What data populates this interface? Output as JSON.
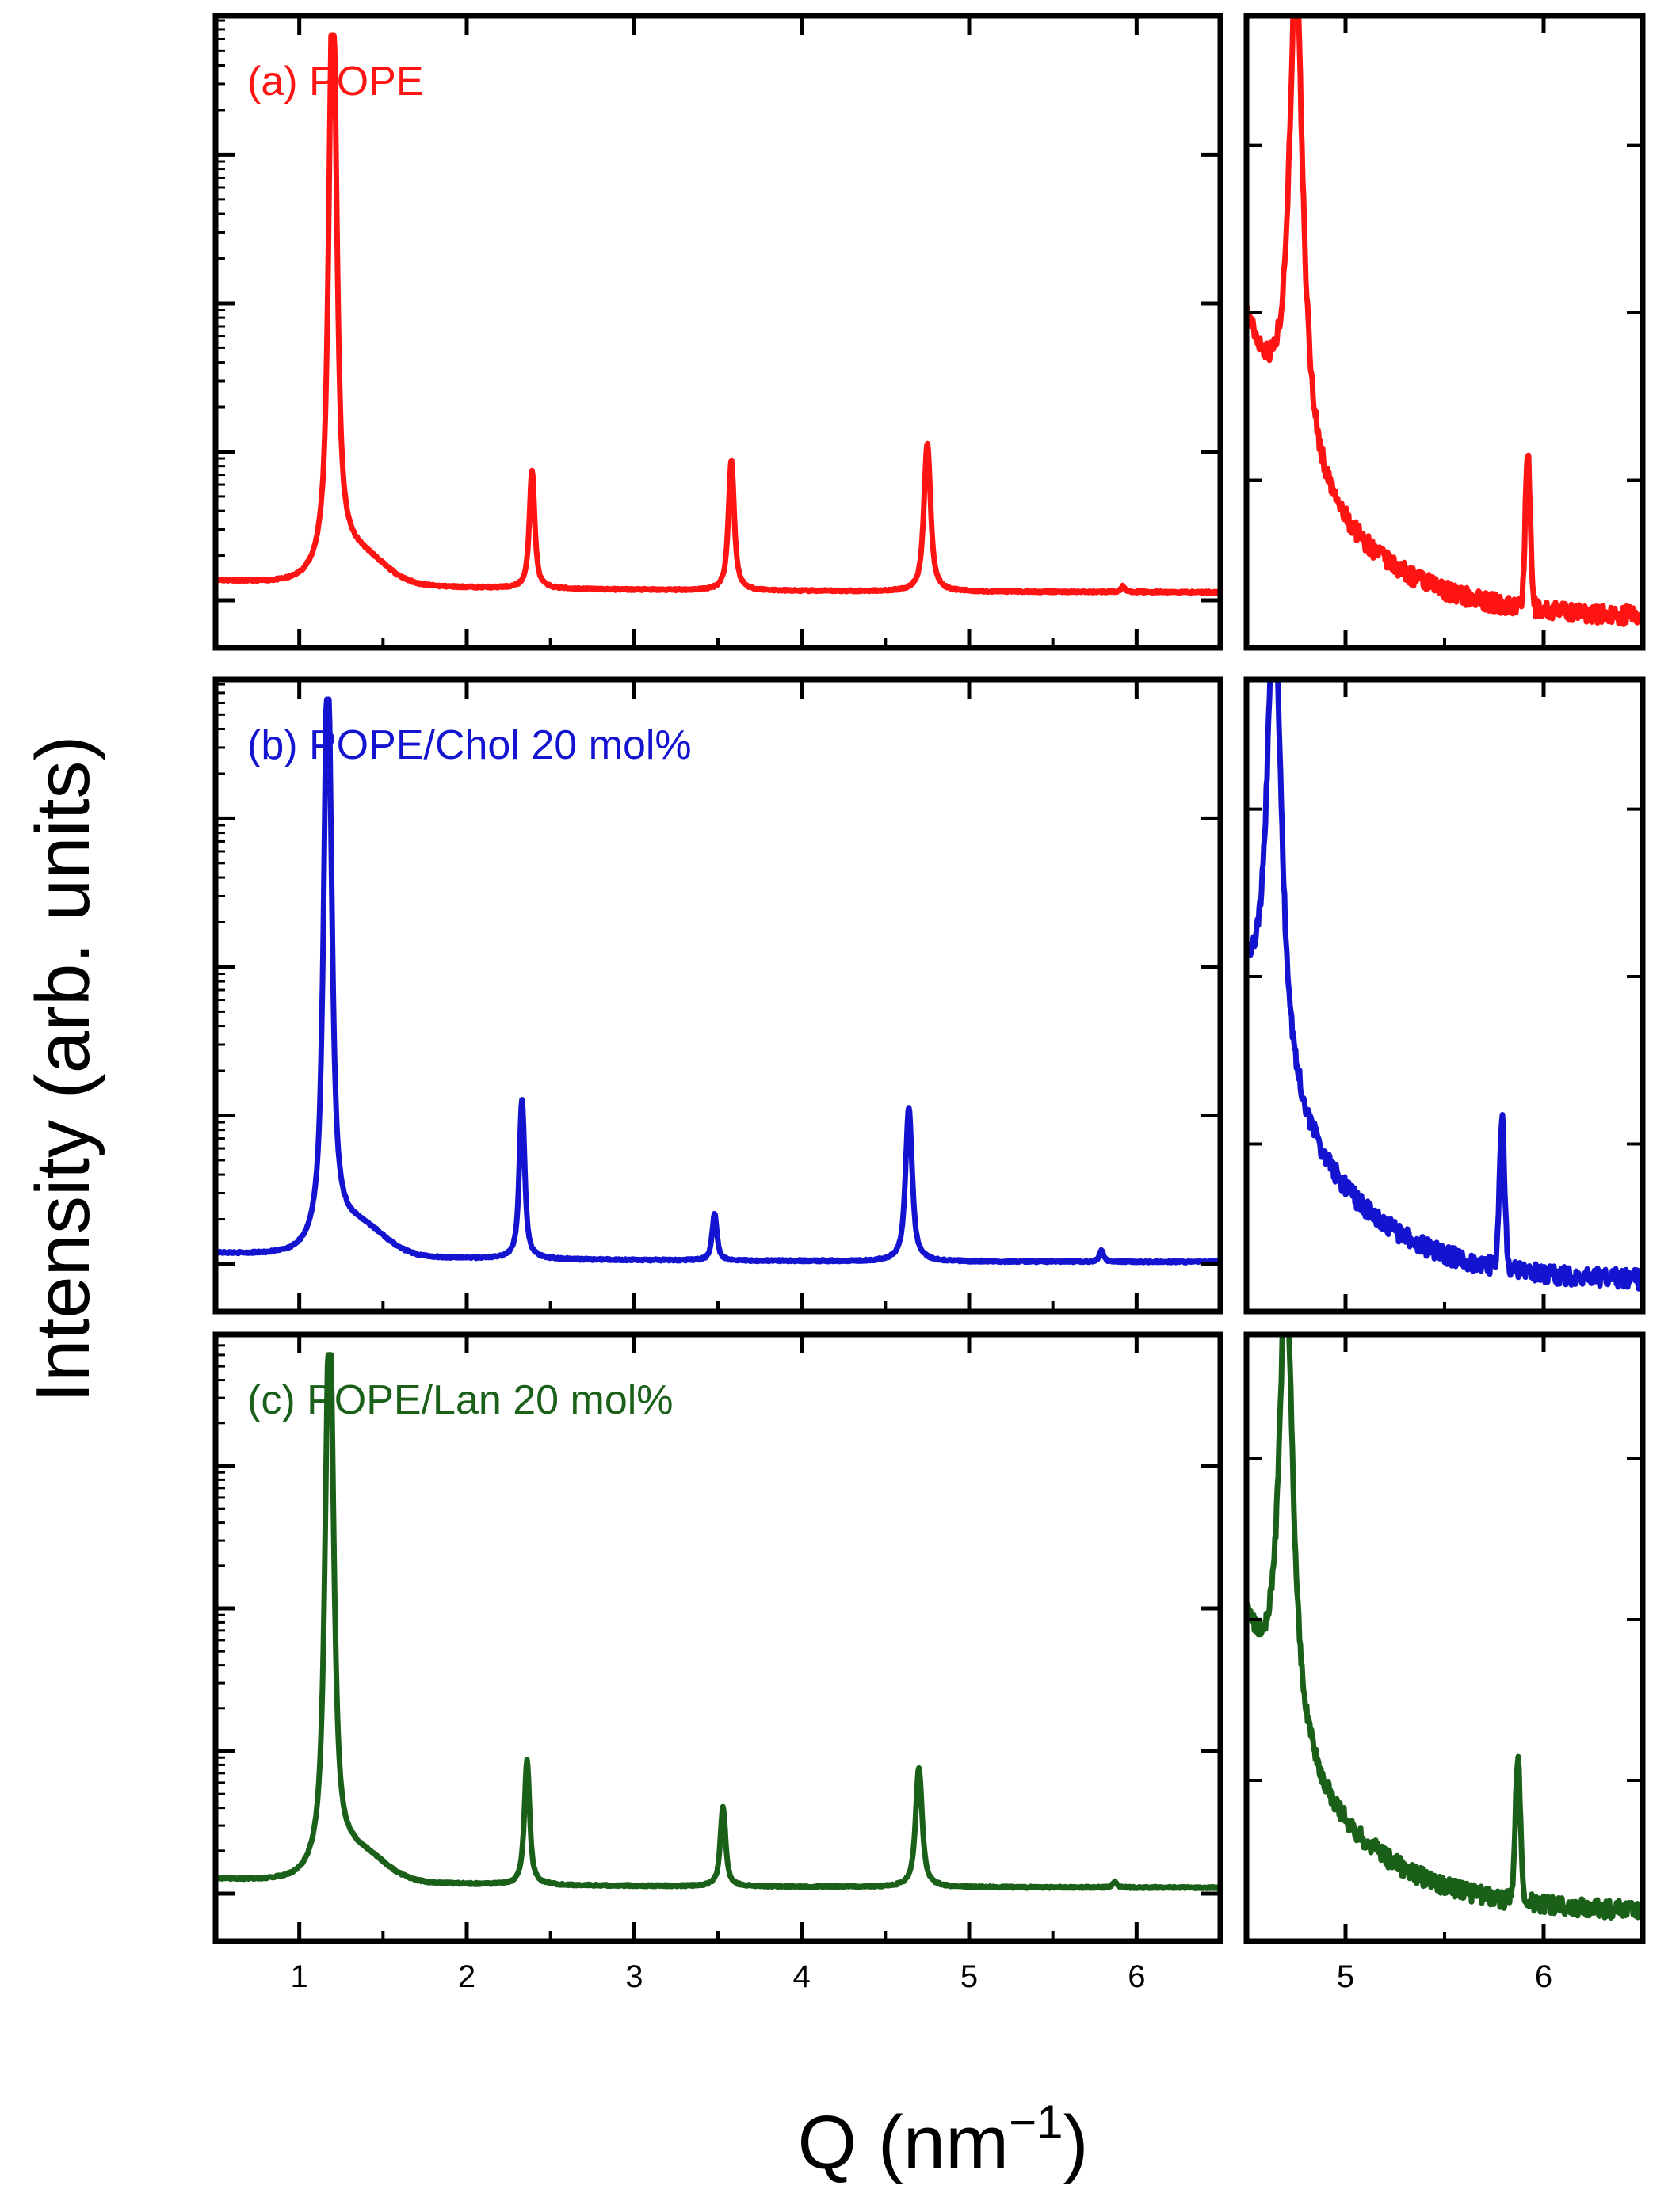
{
  "chart_data": {
    "type": "line",
    "xlabel": "Q (nm−1)",
    "ylabel": "Intensity (arb. units)",
    "yscale": "log",
    "xlim_main": [
      0.5,
      6.5
    ],
    "xlim_inset": [
      4.5,
      6.5
    ],
    "xticks_main": [
      "1",
      "2",
      "3",
      "4",
      "5",
      "6"
    ],
    "xticks_inset": [
      "5",
      "6"
    ],
    "series": [
      {
        "id": "a",
        "name": "(a) POPE",
        "color": "#ff1414",
        "baseline": 0.08,
        "slope": 0.02,
        "peaks": [
          {
            "q": 1.2,
            "height": 1.0,
            "width": 0.03
          },
          {
            "q": 2.39,
            "height": 0.2,
            "width": 0.02
          },
          {
            "q": 3.58,
            "height": 0.22,
            "width": 0.022
          },
          {
            "q": 4.75,
            "height": 0.25,
            "width": 0.025
          },
          {
            "q": 5.92,
            "height": 0.01,
            "width": 0.015
          }
        ],
        "inset_ylim": [
          -0.04,
          0.06
        ],
        "inset_peak_q": 5.92
      },
      {
        "id": "b",
        "name": "(b) POPE/Chol 20 mol%",
        "color": "#1414d0",
        "baseline": 0.07,
        "slope": 0.015,
        "peaks": [
          {
            "q": 1.17,
            "height": 1.0,
            "width": 0.03
          },
          {
            "q": 2.33,
            "height": 0.27,
            "width": 0.02
          },
          {
            "q": 3.48,
            "height": 0.08,
            "width": 0.018
          },
          {
            "q": 4.64,
            "height": 0.26,
            "width": 0.025
          },
          {
            "q": 5.79,
            "height": 0.02,
            "width": 0.015
          }
        ],
        "inset_ylim": [
          -0.04,
          0.06
        ],
        "inset_peak_q": 5.79
      },
      {
        "id": "c",
        "name": "(c) POPE/Lan 20 mol%",
        "color": "#1a6018",
        "baseline": 0.08,
        "slope": 0.015,
        "peaks": [
          {
            "q": 1.18,
            "height": 1.0,
            "width": 0.032
          },
          {
            "q": 2.36,
            "height": 0.22,
            "width": 0.02
          },
          {
            "q": 3.53,
            "height": 0.14,
            "width": 0.02
          },
          {
            "q": 4.7,
            "height": 0.21,
            "width": 0.025
          },
          {
            "q": 5.87,
            "height": 0.01,
            "width": 0.015
          }
        ],
        "inset_ylim": [
          -0.04,
          0.06
        ],
        "inset_peak_q": 5.87
      }
    ]
  }
}
